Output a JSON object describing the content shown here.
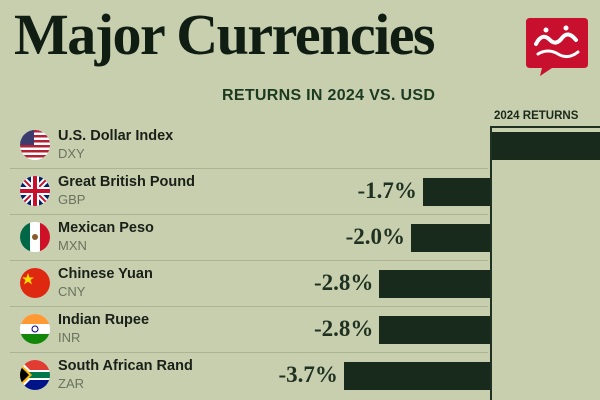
{
  "header": {
    "title": "Major Currencies",
    "subtitle": "RETURNS IN 2024 VS. USD",
    "column_label": "2024 RETURNS"
  },
  "colors": {
    "background": "#c7cfae",
    "bar": "#172a1c",
    "logo": "#c8102e"
  },
  "chart_data": {
    "type": "bar",
    "orientation": "horizontal",
    "title": "Major Currencies",
    "subtitle": "RETURNS IN 2024 VS. USD",
    "series": [
      {
        "name": "2024 RETURNS"
      }
    ],
    "categories": [
      "U.S. Dollar Index",
      "Great British Pound",
      "Mexican Peso",
      "Chinese Yuan",
      "Indian Rupee",
      "South African Rand"
    ],
    "codes": [
      "DXY",
      "GBP",
      "MXN",
      "CNY",
      "INR",
      "ZAR"
    ],
    "values": [
      null,
      -1.7,
      -2.0,
      -2.8,
      -2.8,
      -3.7
    ],
    "value_labels": [
      "",
      "-1.7%",
      "-2.0%",
      "-2.8%",
      "-2.8%",
      "-3.7%"
    ],
    "unit": "%",
    "flag_icons": [
      "us-flag-icon",
      "uk-flag-icon",
      "mexico-flag-icon",
      "china-flag-icon",
      "india-flag-icon",
      "south-africa-flag-icon"
    ]
  }
}
